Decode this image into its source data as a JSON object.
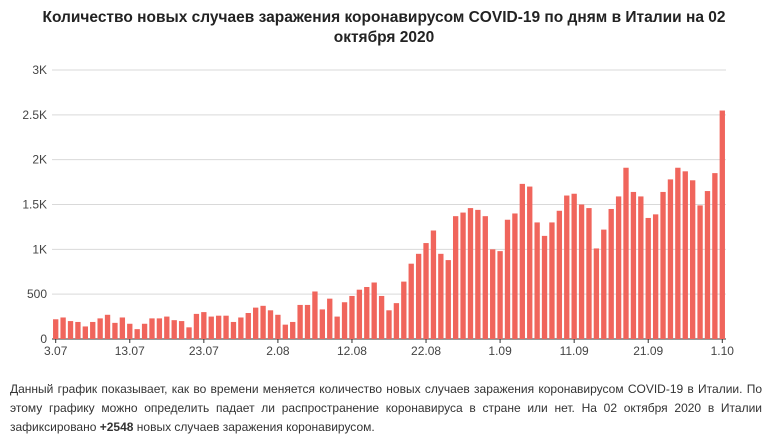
{
  "title": {
    "line1": "Количество новых случаев заражения коронавирусом COVID-19 по дням в Италии на 02",
    "line2": "октября 2020"
  },
  "chart_data": {
    "type": "bar",
    "color": "#f0655c",
    "grid": true,
    "ylim": [
      0,
      3000
    ],
    "yticks": [
      {
        "value": 0,
        "label": "0"
      },
      {
        "value": 500,
        "label": "500"
      },
      {
        "value": 1000,
        "label": "1K"
      },
      {
        "value": 1500,
        "label": "1.5K"
      },
      {
        "value": 2000,
        "label": "2K"
      },
      {
        "value": 2500,
        "label": "2.5K"
      },
      {
        "value": 3000,
        "label": "3K"
      }
    ],
    "xticks": [
      {
        "index": 0,
        "label": "3.07"
      },
      {
        "index": 10,
        "label": "13.07"
      },
      {
        "index": 20,
        "label": "23.07"
      },
      {
        "index": 30,
        "label": "2.08"
      },
      {
        "index": 40,
        "label": "12.08"
      },
      {
        "index": 50,
        "label": "22.08"
      },
      {
        "index": 60,
        "label": "1.09"
      },
      {
        "index": 70,
        "label": "11.09"
      },
      {
        "index": 80,
        "label": "21.09"
      },
      {
        "index": 90,
        "label": "1.10"
      }
    ],
    "categories": [
      "3.07",
      "4.07",
      "5.07",
      "6.07",
      "7.07",
      "8.07",
      "9.07",
      "10.07",
      "11.07",
      "12.07",
      "13.07",
      "14.07",
      "15.07",
      "16.07",
      "17.07",
      "18.07",
      "19.07",
      "20.07",
      "21.07",
      "22.07",
      "23.07",
      "24.07",
      "25.07",
      "26.07",
      "27.07",
      "28.07",
      "29.07",
      "30.07",
      "31.07",
      "1.08",
      "2.08",
      "3.08",
      "4.08",
      "5.08",
      "6.08",
      "7.08",
      "8.08",
      "9.08",
      "10.08",
      "11.08",
      "12.08",
      "13.08",
      "14.08",
      "15.08",
      "16.08",
      "17.08",
      "18.08",
      "19.08",
      "20.08",
      "21.08",
      "22.08",
      "23.08",
      "24.08",
      "25.08",
      "26.08",
      "27.08",
      "28.08",
      "29.08",
      "30.08",
      "31.08",
      "1.09",
      "2.09",
      "3.09",
      "4.09",
      "5.09",
      "6.09",
      "7.09",
      "8.09",
      "9.09",
      "10.09",
      "11.09",
      "12.09",
      "13.09",
      "14.09",
      "15.09",
      "16.09",
      "17.09",
      "18.09",
      "19.09",
      "20.09",
      "21.09",
      "22.09",
      "23.09",
      "24.09",
      "25.09",
      "26.09",
      "27.09",
      "28.09",
      "29.09",
      "30.09",
      "1.10"
    ],
    "values": [
      220,
      240,
      200,
      190,
      140,
      190,
      230,
      270,
      180,
      240,
      170,
      110,
      170,
      230,
      230,
      250,
      210,
      200,
      130,
      280,
      300,
      250,
      260,
      260,
      190,
      240,
      290,
      350,
      370,
      320,
      270,
      160,
      190,
      380,
      380,
      530,
      330,
      450,
      250,
      410,
      480,
      550,
      580,
      630,
      480,
      320,
      400,
      640,
      840,
      950,
      1070,
      1210,
      950,
      880,
      1370,
      1410,
      1460,
      1440,
      1370,
      1000,
      980,
      1330,
      1400,
      1730,
      1700,
      1300,
      1150,
      1300,
      1430,
      1600,
      1620,
      1500,
      1460,
      1010,
      1220,
      1450,
      1590,
      1910,
      1640,
      1590,
      1350,
      1390,
      1640,
      1780,
      1910,
      1870,
      1770,
      1490,
      1650,
      1850,
      2548
    ]
  },
  "description": {
    "part1": "Данный график показывает, как во времени меняется количество новых случаев заражения коронавирусом COVID-19 в Италии. По этому графику можно определить падает ли распространение коронавируса в стране или нет. На 02 октября 2020 в Италии зафиксировано ",
    "highlight": "+2548",
    "part2": " новых случаев заражения коронавирусом."
  }
}
